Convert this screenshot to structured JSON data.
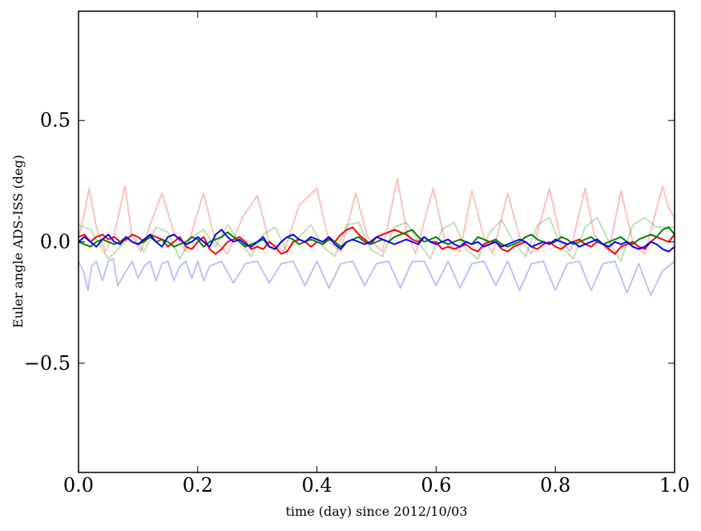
{
  "chart_data": {
    "type": "line",
    "title": "",
    "xlabel": "time (day) since 2012/10/03",
    "ylabel": "Euler angle ADS-ISS (deg)",
    "xlim": [
      0.0,
      1.0
    ],
    "ylim": [
      -0.95,
      0.95
    ],
    "xticks": [
      0.0,
      0.2,
      0.4,
      0.6,
      0.8,
      1.0
    ],
    "xtick_labels": [
      "0.0",
      "0.2",
      "0.4",
      "0.6",
      "0.8",
      "1.0"
    ],
    "yticks": [
      -0.5,
      0.0,
      0.5
    ],
    "ytick_labels": [
      "−0.5",
      "0.0",
      "0.5"
    ],
    "grid": false,
    "legend": "none",
    "series": [
      {
        "color": "#ff0000",
        "opacity": 0.25,
        "x": [
          0.0,
          0.008,
          0.018,
          0.03,
          0.045,
          0.06,
          0.078,
          0.09,
          0.105,
          0.12,
          0.14,
          0.16,
          0.18,
          0.21,
          0.23,
          0.25,
          0.275,
          0.3,
          0.32,
          0.345,
          0.37,
          0.4,
          0.42,
          0.44,
          0.465,
          0.485,
          0.51,
          0.535,
          0.55,
          0.565,
          0.595,
          0.615,
          0.64,
          0.66,
          0.68,
          0.695,
          0.72,
          0.74,
          0.76,
          0.79,
          0.81,
          0.825,
          0.85,
          0.865,
          0.89,
          0.91,
          0.93,
          0.95,
          0.98,
          0.99,
          1.0
        ],
        "y": [
          0.02,
          0.1,
          0.22,
          0.06,
          -0.04,
          0.03,
          0.23,
          0.02,
          -0.04,
          0.07,
          0.2,
          0.04,
          -0.04,
          0.2,
          0.0,
          -0.05,
          0.1,
          0.19,
          0.0,
          -0.04,
          0.15,
          0.22,
          0.0,
          -0.04,
          0.2,
          0.02,
          -0.04,
          0.26,
          0.05,
          -0.05,
          0.22,
          0.0,
          -0.04,
          0.21,
          0.02,
          -0.05,
          0.2,
          0.02,
          -0.05,
          0.22,
          0.0,
          -0.04,
          0.22,
          0.03,
          -0.04,
          0.21,
          0.0,
          -0.05,
          0.23,
          0.14,
          0.1
        ]
      },
      {
        "color": "#008000",
        "opacity": 0.25,
        "x": [
          0.0,
          0.02,
          0.035,
          0.05,
          0.07,
          0.09,
          0.11,
          0.13,
          0.15,
          0.17,
          0.19,
          0.21,
          0.23,
          0.25,
          0.27,
          0.29,
          0.31,
          0.33,
          0.35,
          0.37,
          0.39,
          0.41,
          0.43,
          0.45,
          0.47,
          0.49,
          0.51,
          0.53,
          0.55,
          0.57,
          0.59,
          0.61,
          0.63,
          0.65,
          0.67,
          0.69,
          0.71,
          0.73,
          0.75,
          0.77,
          0.79,
          0.81,
          0.83,
          0.85,
          0.87,
          0.89,
          0.91,
          0.93,
          0.95,
          0.97,
          1.0
        ],
        "y": [
          0.07,
          0.05,
          -0.01,
          -0.07,
          -0.02,
          0.03,
          -0.04,
          0.06,
          0.04,
          -0.07,
          0.02,
          0.05,
          -0.02,
          0.07,
          0.0,
          -0.06,
          0.03,
          0.06,
          -0.04,
          0.02,
          0.07,
          -0.02,
          -0.06,
          0.07,
          0.08,
          -0.03,
          -0.06,
          0.06,
          0.08,
          0.0,
          -0.07,
          0.05,
          0.08,
          -0.03,
          -0.07,
          0.04,
          0.09,
          0.0,
          -0.06,
          0.07,
          0.1,
          -0.02,
          -0.07,
          0.06,
          0.1,
          0.0,
          -0.08,
          0.07,
          0.1,
          0.06,
          0.06
        ]
      },
      {
        "color": "#0000ff",
        "opacity": 0.25,
        "x": [
          0.0,
          0.008,
          0.016,
          0.022,
          0.03,
          0.04,
          0.05,
          0.058,
          0.066,
          0.08,
          0.09,
          0.1,
          0.11,
          0.12,
          0.13,
          0.14,
          0.15,
          0.16,
          0.17,
          0.18,
          0.19,
          0.2,
          0.21,
          0.22,
          0.24,
          0.26,
          0.28,
          0.3,
          0.32,
          0.34,
          0.36,
          0.38,
          0.4,
          0.42,
          0.44,
          0.46,
          0.48,
          0.5,
          0.52,
          0.54,
          0.56,
          0.58,
          0.6,
          0.62,
          0.64,
          0.66,
          0.68,
          0.7,
          0.72,
          0.74,
          0.76,
          0.78,
          0.8,
          0.82,
          0.84,
          0.86,
          0.88,
          0.9,
          0.92,
          0.94,
          0.96,
          0.98,
          1.0
        ],
        "y": [
          -0.08,
          -0.12,
          -0.2,
          -0.1,
          -0.08,
          -0.16,
          -0.08,
          -0.07,
          -0.18,
          -0.12,
          -0.08,
          -0.15,
          -0.1,
          -0.08,
          -0.16,
          -0.09,
          -0.08,
          -0.16,
          -0.1,
          -0.08,
          -0.15,
          -0.08,
          -0.16,
          -0.1,
          -0.08,
          -0.17,
          -0.09,
          -0.08,
          -0.17,
          -0.09,
          -0.08,
          -0.18,
          -0.08,
          -0.19,
          -0.09,
          -0.08,
          -0.18,
          -0.09,
          -0.08,
          -0.19,
          -0.08,
          -0.08,
          -0.18,
          -0.08,
          -0.19,
          -0.09,
          -0.08,
          -0.18,
          -0.08,
          -0.2,
          -0.09,
          -0.08,
          -0.2,
          -0.09,
          -0.08,
          -0.2,
          -0.09,
          -0.08,
          -0.21,
          -0.09,
          -0.22,
          -0.12,
          -0.08
        ]
      },
      {
        "color": "#ff0000",
        "opacity": 1.0,
        "x": [
          0.0,
          0.01,
          0.02,
          0.03,
          0.04,
          0.05,
          0.06,
          0.07,
          0.08,
          0.09,
          0.1,
          0.11,
          0.12,
          0.13,
          0.14,
          0.15,
          0.16,
          0.17,
          0.18,
          0.19,
          0.2,
          0.21,
          0.22,
          0.23,
          0.24,
          0.25,
          0.26,
          0.27,
          0.28,
          0.29,
          0.3,
          0.31,
          0.32,
          0.33,
          0.34,
          0.35,
          0.36,
          0.37,
          0.38,
          0.39,
          0.4,
          0.41,
          0.42,
          0.43,
          0.44,
          0.45,
          0.46,
          0.47,
          0.48,
          0.49,
          0.5,
          0.51,
          0.52,
          0.53,
          0.54,
          0.55,
          0.56,
          0.57,
          0.58,
          0.59,
          0.6,
          0.61,
          0.62,
          0.63,
          0.64,
          0.65,
          0.66,
          0.67,
          0.68,
          0.69,
          0.7,
          0.71,
          0.72,
          0.73,
          0.74,
          0.75,
          0.76,
          0.77,
          0.78,
          0.79,
          0.8,
          0.81,
          0.82,
          0.83,
          0.84,
          0.85,
          0.86,
          0.87,
          0.88,
          0.89,
          0.9,
          0.91,
          0.92,
          0.93,
          0.94,
          0.95,
          0.96,
          0.97,
          0.98,
          0.99,
          1.0
        ],
        "y": [
          0.02,
          0.03,
          0.0,
          0.02,
          0.03,
          0.01,
          0.02,
          0.0,
          0.01,
          0.03,
          0.02,
          0.0,
          0.03,
          0.02,
          0.01,
          -0.02,
          0.0,
          0.02,
          -0.02,
          -0.03,
          0.0,
          0.02,
          -0.03,
          -0.05,
          -0.03,
          0.0,
          0.01,
          0.02,
          0.0,
          -0.03,
          -0.02,
          -0.03,
          0.0,
          -0.02,
          -0.05,
          -0.04,
          0.0,
          0.01,
          0.0,
          -0.02,
          0.0,
          -0.01,
          0.02,
          0.0,
          0.03,
          0.05,
          0.06,
          0.03,
          0.01,
          -0.01,
          0.02,
          0.03,
          0.04,
          0.05,
          0.04,
          0.03,
          0.01,
          0.0,
          0.02,
          0.0,
          0.0,
          -0.03,
          -0.02,
          -0.03,
          -0.02,
          -0.01,
          -0.03,
          -0.04,
          -0.01,
          0.0,
          0.0,
          -0.03,
          -0.04,
          -0.02,
          -0.01,
          0.0,
          -0.02,
          -0.03,
          -0.01,
          0.0,
          -0.02,
          -0.03,
          -0.01,
          0.0,
          0.01,
          -0.01,
          -0.02,
          0.0,
          -0.01,
          -0.03,
          -0.05,
          -0.02,
          -0.01,
          0.0,
          -0.02,
          -0.03,
          0.0,
          0.02,
          0.01,
          0.0,
          0.03
        ]
      },
      {
        "color": "#008000",
        "opacity": 1.0,
        "x": [
          0.0,
          0.01,
          0.02,
          0.03,
          0.04,
          0.05,
          0.06,
          0.07,
          0.08,
          0.09,
          0.1,
          0.11,
          0.12,
          0.13,
          0.14,
          0.15,
          0.16,
          0.17,
          0.18,
          0.19,
          0.2,
          0.21,
          0.22,
          0.23,
          0.24,
          0.25,
          0.26,
          0.27,
          0.28,
          0.29,
          0.3,
          0.31,
          0.32,
          0.33,
          0.34,
          0.35,
          0.36,
          0.37,
          0.38,
          0.39,
          0.4,
          0.41,
          0.42,
          0.43,
          0.44,
          0.45,
          0.46,
          0.47,
          0.48,
          0.49,
          0.5,
          0.51,
          0.52,
          0.53,
          0.54,
          0.55,
          0.56,
          0.57,
          0.58,
          0.59,
          0.6,
          0.61,
          0.62,
          0.63,
          0.64,
          0.65,
          0.66,
          0.67,
          0.68,
          0.69,
          0.7,
          0.71,
          0.72,
          0.73,
          0.74,
          0.75,
          0.76,
          0.77,
          0.78,
          0.79,
          0.8,
          0.81,
          0.82,
          0.83,
          0.84,
          0.85,
          0.86,
          0.87,
          0.88,
          0.89,
          0.9,
          0.91,
          0.92,
          0.93,
          0.94,
          0.95,
          0.96,
          0.97,
          0.98,
          0.99,
          1.0
        ],
        "y": [
          0.0,
          -0.01,
          -0.02,
          0.0,
          0.01,
          0.0,
          -0.01,
          0.0,
          0.02,
          0.0,
          -0.01,
          0.0,
          0.02,
          0.0,
          0.01,
          0.0,
          -0.02,
          -0.01,
          0.0,
          0.02,
          0.01,
          -0.02,
          0.0,
          0.01,
          0.02,
          0.04,
          0.02,
          0.0,
          -0.02,
          -0.01,
          0.0,
          0.01,
          -0.02,
          -0.03,
          0.0,
          0.02,
          0.01,
          -0.01,
          0.0,
          0.01,
          0.0,
          -0.01,
          0.01,
          0.0,
          -0.02,
          0.0,
          0.01,
          0.02,
          0.0,
          -0.01,
          0.0,
          0.01,
          0.0,
          0.02,
          0.03,
          0.04,
          0.05,
          0.02,
          0.0,
          0.01,
          0.02,
          0.0,
          -0.01,
          0.0,
          0.01,
          0.0,
          -0.01,
          0.02,
          0.01,
          0.0,
          0.01,
          -0.01,
          -0.02,
          -0.01,
          0.0,
          0.02,
          0.03,
          0.01,
          0.0,
          -0.01,
          0.0,
          0.02,
          0.01,
          -0.01,
          0.0,
          0.01,
          0.02,
          0.0,
          -0.01,
          0.0,
          0.01,
          0.02,
          0.0,
          -0.01,
          0.01,
          0.02,
          0.03,
          0.02,
          0.05,
          0.06,
          0.03
        ]
      },
      {
        "color": "#0000ff",
        "opacity": 1.0,
        "x": [
          0.0,
          0.01,
          0.02,
          0.03,
          0.04,
          0.05,
          0.06,
          0.07,
          0.08,
          0.09,
          0.1,
          0.11,
          0.12,
          0.13,
          0.14,
          0.15,
          0.16,
          0.17,
          0.18,
          0.19,
          0.2,
          0.21,
          0.22,
          0.23,
          0.24,
          0.25,
          0.26,
          0.27,
          0.28,
          0.29,
          0.3,
          0.31,
          0.32,
          0.33,
          0.34,
          0.35,
          0.36,
          0.37,
          0.38,
          0.39,
          0.4,
          0.41,
          0.42,
          0.43,
          0.44,
          0.45,
          0.46,
          0.47,
          0.48,
          0.49,
          0.5,
          0.51,
          0.52,
          0.53,
          0.54,
          0.55,
          0.56,
          0.57,
          0.58,
          0.59,
          0.6,
          0.61,
          0.62,
          0.63,
          0.64,
          0.65,
          0.66,
          0.67,
          0.68,
          0.69,
          0.7,
          0.71,
          0.72,
          0.73,
          0.74,
          0.75,
          0.76,
          0.77,
          0.78,
          0.79,
          0.8,
          0.81,
          0.82,
          0.83,
          0.84,
          0.85,
          0.86,
          0.87,
          0.88,
          0.89,
          0.9,
          0.91,
          0.92,
          0.93,
          0.94,
          0.95,
          0.96,
          0.97,
          0.98,
          0.99,
          1.0
        ],
        "y": [
          0.0,
          0.02,
          0.0,
          -0.02,
          0.01,
          0.03,
          0.0,
          -0.01,
          0.02,
          0.0,
          -0.01,
          0.01,
          0.03,
          0.0,
          -0.02,
          0.02,
          0.03,
          0.01,
          -0.01,
          0.0,
          0.02,
          0.0,
          -0.02,
          0.03,
          0.05,
          0.02,
          0.0,
          0.01,
          -0.01,
          -0.02,
          0.0,
          0.02,
          -0.02,
          -0.03,
          0.0,
          0.02,
          0.03,
          0.01,
          0.0,
          0.02,
          0.01,
          0.0,
          0.02,
          -0.01,
          -0.03,
          0.0,
          0.01,
          0.0,
          -0.01,
          0.0,
          0.02,
          0.01,
          0.0,
          -0.01,
          0.0,
          0.01,
          0.0,
          -0.01,
          0.02,
          0.0,
          -0.01,
          0.0,
          0.01,
          -0.01,
          -0.02,
          0.0,
          -0.01,
          0.0,
          -0.02,
          -0.01,
          0.0,
          -0.02,
          -0.01,
          0.0,
          0.01,
          0.0,
          -0.02,
          -0.01,
          0.0,
          -0.01,
          0.01,
          0.0,
          -0.01,
          0.0,
          -0.02,
          -0.01,
          0.0,
          0.01,
          -0.01,
          -0.02,
          0.0,
          -0.01,
          0.0,
          -0.02,
          -0.03,
          -0.02,
          0.0,
          -0.01,
          -0.03,
          -0.04,
          -0.02
        ]
      }
    ]
  }
}
